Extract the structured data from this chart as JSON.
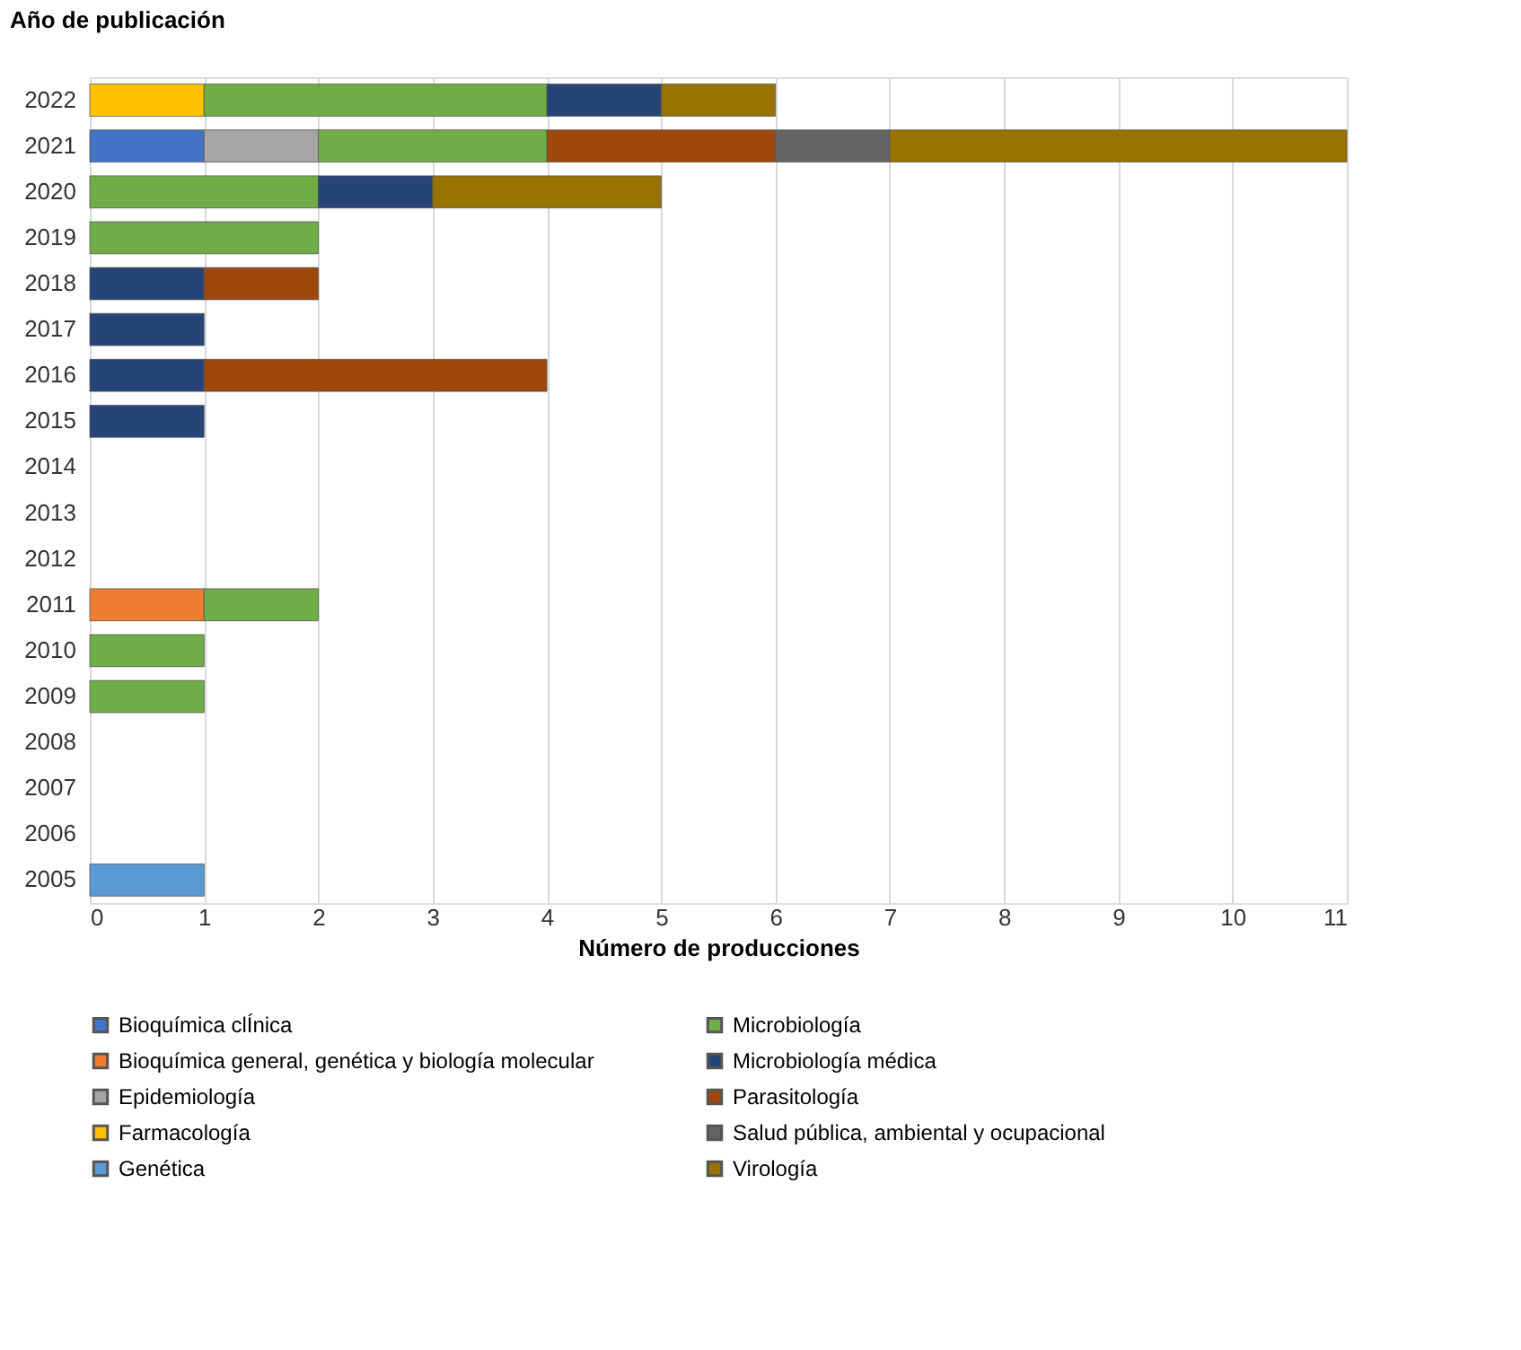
{
  "chart_data": {
    "type": "bar",
    "orientation": "horizontal",
    "stacked": true,
    "xlabel": "Número de producciones",
    "ylabel": "Año de publicación",
    "categories": [
      "2022",
      "2021",
      "2020",
      "2019",
      "2018",
      "2017",
      "2016",
      "2015",
      "2014",
      "2013",
      "2012",
      "2011",
      "2010",
      "2009",
      "2008",
      "2007",
      "2006",
      "2005"
    ],
    "series": [
      {
        "name": "Bioquímica clÍnica",
        "color": "#4472c4",
        "values": [
          null,
          1,
          null,
          null,
          null,
          null,
          null,
          null,
          null,
          null,
          null,
          null,
          null,
          null,
          null,
          null,
          null,
          null
        ]
      },
      {
        "name": "Bioquímica general, genética y biología molecular",
        "color": "#ed7d31",
        "values": [
          null,
          null,
          null,
          null,
          null,
          null,
          null,
          null,
          null,
          null,
          null,
          1,
          null,
          null,
          null,
          null,
          null,
          null
        ]
      },
      {
        "name": "Epidemiología",
        "color": "#a5a5a5",
        "values": [
          null,
          1,
          null,
          null,
          null,
          null,
          null,
          null,
          null,
          null,
          null,
          null,
          null,
          null,
          null,
          null,
          null,
          null
        ]
      },
      {
        "name": "Farmacología",
        "color": "#ffc000",
        "values": [
          1,
          null,
          null,
          null,
          null,
          null,
          null,
          null,
          null,
          null,
          null,
          null,
          null,
          null,
          null,
          null,
          null,
          null
        ]
      },
      {
        "name": "Genética",
        "color": "#5b9bd5",
        "values": [
          null,
          null,
          null,
          null,
          null,
          null,
          null,
          null,
          null,
          null,
          null,
          null,
          null,
          null,
          null,
          null,
          null,
          1
        ]
      },
      {
        "name": "Microbiología",
        "color": "#70ad47",
        "values": [
          3,
          2,
          2,
          2,
          null,
          null,
          null,
          null,
          null,
          null,
          null,
          1,
          1,
          1,
          null,
          null,
          null,
          null
        ]
      },
      {
        "name": "Microbiología médica",
        "color": "#264478",
        "values": [
          1,
          null,
          1,
          null,
          1,
          1,
          1,
          1,
          null,
          null,
          null,
          null,
          null,
          null,
          null,
          null,
          null,
          null
        ]
      },
      {
        "name": "Parasitología",
        "color": "#9e480e",
        "values": [
          null,
          2,
          null,
          null,
          1,
          null,
          3,
          null,
          null,
          null,
          null,
          null,
          null,
          null,
          null,
          null,
          null,
          null
        ]
      },
      {
        "name": "Salud pública, ambiental y ocupacional",
        "color": "#636363",
        "values": [
          null,
          1,
          null,
          null,
          null,
          null,
          null,
          null,
          null,
          null,
          null,
          null,
          null,
          null,
          null,
          null,
          null,
          null
        ]
      },
      {
        "name": "Virología",
        "color": "#997300",
        "values": [
          1,
          4,
          2,
          null,
          null,
          null,
          null,
          null,
          null,
          null,
          null,
          null,
          null,
          null,
          null,
          null,
          null,
          null
        ]
      }
    ],
    "xlim": [
      0,
      11
    ],
    "xticks": [
      0,
      1,
      2,
      3,
      4,
      5,
      6,
      7,
      8,
      9,
      10,
      11
    ],
    "grid": "x",
    "legend": "bottom"
  }
}
